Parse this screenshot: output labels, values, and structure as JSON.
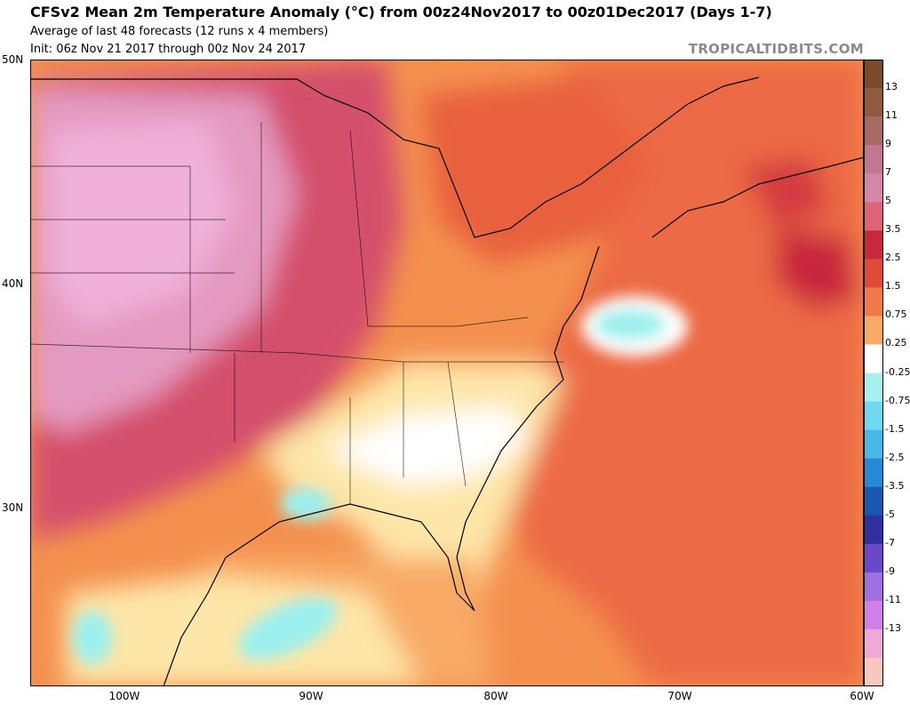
{
  "header": {
    "title": "CFSv2 Mean 2m Temperature Anomaly (°C) from 00z24Nov2017 to 00z01Dec2017 (Days 1-7)",
    "subtitle1": "Average of last 48 forecasts (12 runs x 4 members)",
    "subtitle2": "Init: 06z Nov 21 2017 through 00z Nov 24 2017",
    "credit": "TROPICALTIDBITS.COM"
  },
  "axes": {
    "lat_labels": [
      "50N",
      "40N",
      "30N"
    ],
    "lon_labels": [
      "100W",
      "90W",
      "80W",
      "70W",
      "60W"
    ]
  },
  "colorbar": {
    "labels": [
      "13",
      "11",
      "9",
      "7",
      "5",
      "3.5",
      "2.5",
      "1.5",
      "0.75",
      "0.25",
      "-0.25",
      "-0.75",
      "-1.5",
      "-2.5",
      "-3.5",
      "-5",
      "-7",
      "-9",
      "-11",
      "-13"
    ],
    "colors": [
      "#7a4a2a",
      "#8e5a40",
      "#a86a62",
      "#c07890",
      "#d486a8",
      "#e06478",
      "#c8283c",
      "#e04a3a",
      "#f0784a",
      "#f8aa66",
      "#ffffff",
      "#a8f0f0",
      "#70d8f0",
      "#48b8e8",
      "#2888d8",
      "#1858b0",
      "#3030a0",
      "#6a48c8",
      "#a070e0",
      "#d080e8",
      "#f0a8d8",
      "#f8c8c0"
    ]
  },
  "map": {
    "colors": {
      "bg": "#f4904e",
      "strong_warm": "#e85c3c",
      "deep_red": "#c8283c",
      "magenta": "#d4506c",
      "pink": "#e49ac0",
      "light_pink": "#f0b0d8",
      "orange": "#f8aa66",
      "pale": "#fde6a8",
      "white": "#ffffff",
      "cyan": "#9cf0ee"
    }
  }
}
